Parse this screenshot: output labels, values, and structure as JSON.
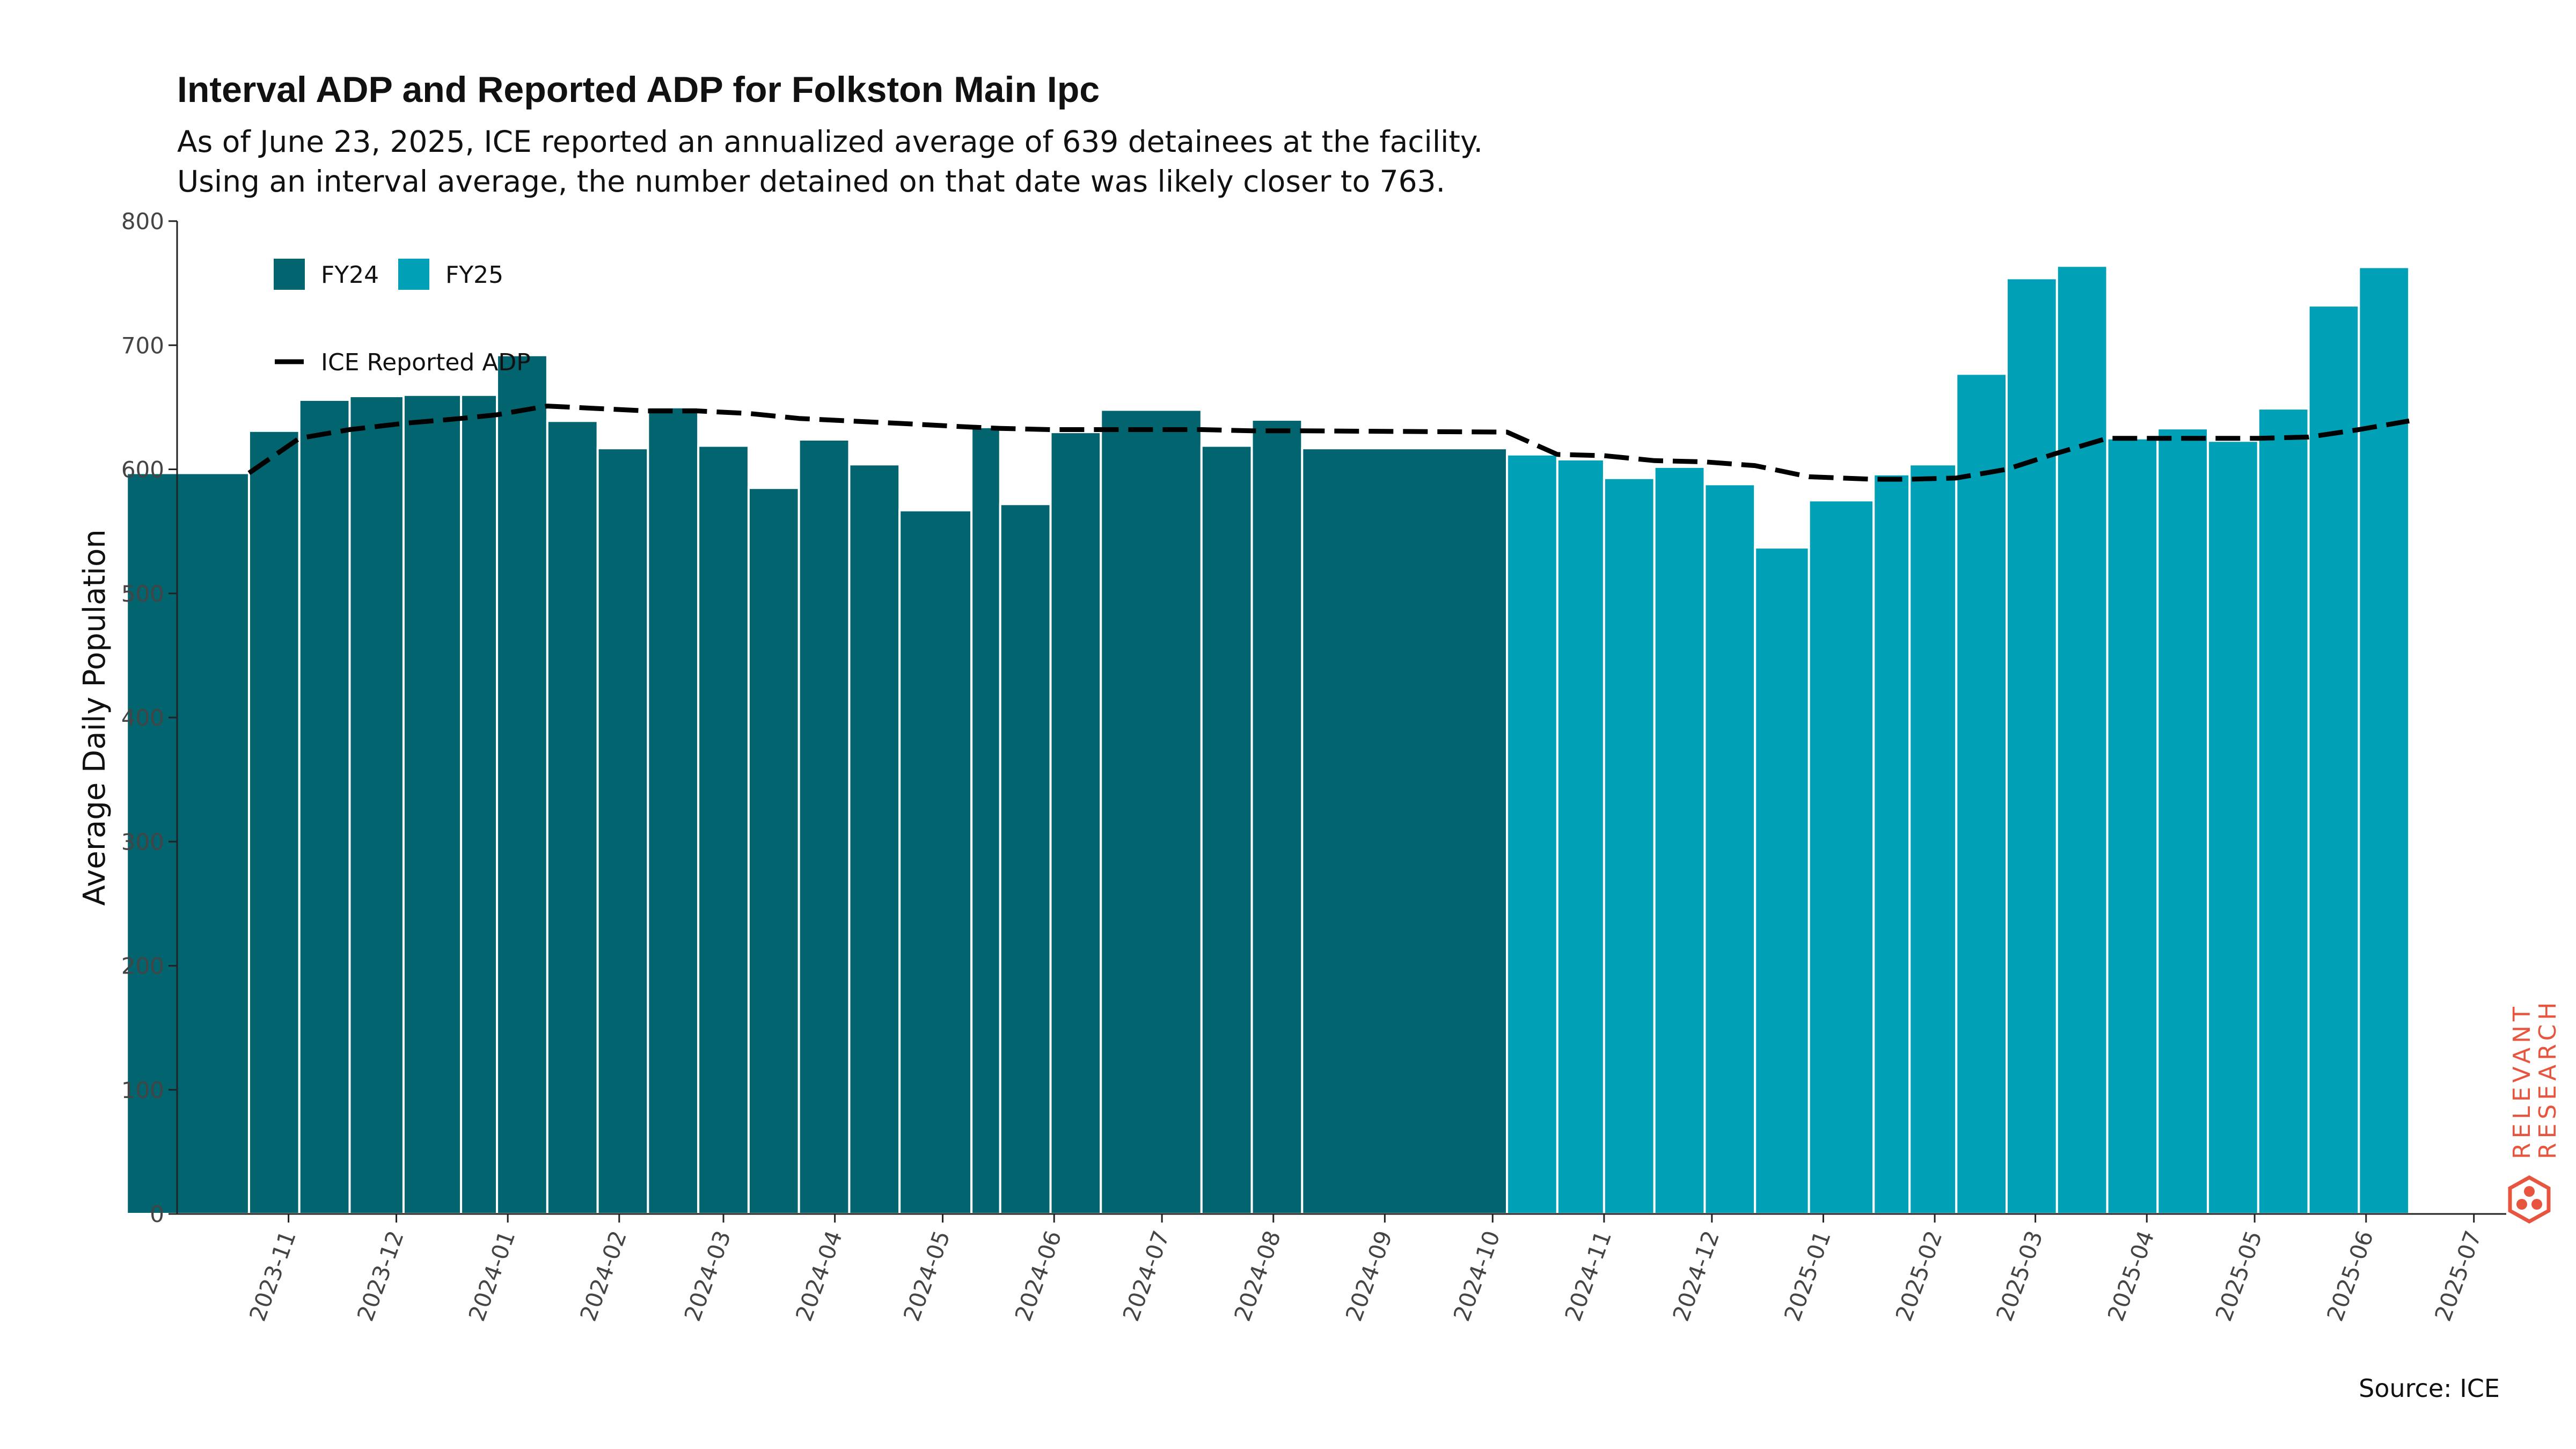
{
  "header": {
    "title": "Interval ADP and Reported ADP for Folkston Main Ipc",
    "subtitle_line1": "As of June 23, 2025, ICE reported an annualized average of 639 detainees at the facility.",
    "subtitle_line2": "Using an interval average, the number detained on that date was likely closer to 763."
  },
  "footer": {
    "source": "Source: ICE"
  },
  "brand": {
    "line1": "RELEVANT",
    "line2": "RESEARCH",
    "logo_icon": "hexagon-dots-icon",
    "color": "#e8553f"
  },
  "chart_data": {
    "type": "bar",
    "ylabel": "Average Daily Population",
    "xlabel": "",
    "ylim": [
      0,
      800
    ],
    "y_ticks": [
      0,
      100,
      200,
      300,
      400,
      500,
      600,
      700,
      800
    ],
    "x_ticks": [
      "2023-11",
      "2023-12",
      "2024-01",
      "2024-02",
      "2024-03",
      "2024-04",
      "2024-05",
      "2024-06",
      "2024-07",
      "2024-08",
      "2024-09",
      "2024-10",
      "2024-11",
      "2024-12",
      "2025-01",
      "2025-02",
      "2025-03",
      "2025-04",
      "2025-05",
      "2025-06",
      "2025-07"
    ],
    "legend": {
      "placement": "top-left",
      "entries": [
        {
          "label": "FY24",
          "color": "#02646f"
        },
        {
          "label": "FY25",
          "color": "#00a1b7"
        },
        {
          "label": "ICE Reported ADP",
          "style": "dashed-line",
          "color": "#000000"
        }
      ]
    },
    "bars": [
      {
        "start": "2023-10-01",
        "end": "2023-11-04",
        "value": 597,
        "fy": "FY24"
      },
      {
        "start": "2023-11-04",
        "end": "2023-11-18",
        "value": 631,
        "fy": "FY24"
      },
      {
        "start": "2023-11-18",
        "end": "2023-12-02",
        "value": 656,
        "fy": "FY24"
      },
      {
        "start": "2023-12-02",
        "end": "2023-12-17",
        "value": 659,
        "fy": "FY24"
      },
      {
        "start": "2023-12-17",
        "end": "2024-01-02",
        "value": 660,
        "fy": "FY24"
      },
      {
        "start": "2024-01-02",
        "end": "2024-01-12",
        "value": 660,
        "fy": "FY24"
      },
      {
        "start": "2024-01-12",
        "end": "2024-01-26",
        "value": 692,
        "fy": "FY24"
      },
      {
        "start": "2024-01-26",
        "end": "2024-02-09",
        "value": 639,
        "fy": "FY24"
      },
      {
        "start": "2024-02-09",
        "end": "2024-02-23",
        "value": 617,
        "fy": "FY24"
      },
      {
        "start": "2024-02-23",
        "end": "2024-03-08",
        "value": 650,
        "fy": "FY24"
      },
      {
        "start": "2024-03-08",
        "end": "2024-03-22",
        "value": 619,
        "fy": "FY24"
      },
      {
        "start": "2024-03-22",
        "end": "2024-04-05",
        "value": 585,
        "fy": "FY24"
      },
      {
        "start": "2024-04-05",
        "end": "2024-04-19",
        "value": 624,
        "fy": "FY24"
      },
      {
        "start": "2024-04-19",
        "end": "2024-05-03",
        "value": 604,
        "fy": "FY24"
      },
      {
        "start": "2024-05-03",
        "end": "2024-05-23",
        "value": 567,
        "fy": "FY24"
      },
      {
        "start": "2024-05-23",
        "end": "2024-05-31",
        "value": 634,
        "fy": "FY24"
      },
      {
        "start": "2024-05-31",
        "end": "2024-06-14",
        "value": 572,
        "fy": "FY24"
      },
      {
        "start": "2024-06-14",
        "end": "2024-06-28",
        "value": 630,
        "fy": "FY24"
      },
      {
        "start": "2024-06-28",
        "end": "2024-07-26",
        "value": 648,
        "fy": "FY24"
      },
      {
        "start": "2024-07-26",
        "end": "2024-08-09",
        "value": 619,
        "fy": "FY24"
      },
      {
        "start": "2024-08-09",
        "end": "2024-08-23",
        "value": 640,
        "fy": "FY24"
      },
      {
        "start": "2024-08-23",
        "end": "2024-10-19",
        "value": 617,
        "fy": "FY24"
      },
      {
        "start": "2024-10-19",
        "end": "2024-11-02",
        "value": 612,
        "fy": "FY25"
      },
      {
        "start": "2024-11-02",
        "end": "2024-11-15",
        "value": 608,
        "fy": "FY25"
      },
      {
        "start": "2024-11-15",
        "end": "2024-11-29",
        "value": 593,
        "fy": "FY25"
      },
      {
        "start": "2024-11-29",
        "end": "2024-12-13",
        "value": 602,
        "fy": "FY25"
      },
      {
        "start": "2024-12-13",
        "end": "2024-12-27",
        "value": 588,
        "fy": "FY25"
      },
      {
        "start": "2024-12-27",
        "end": "2025-01-11",
        "value": 537,
        "fy": "FY25"
      },
      {
        "start": "2025-01-11",
        "end": "2025-01-29",
        "value": 575,
        "fy": "FY25"
      },
      {
        "start": "2025-01-29",
        "end": "2025-02-08",
        "value": 596,
        "fy": "FY25"
      },
      {
        "start": "2025-02-08",
        "end": "2025-02-21",
        "value": 604,
        "fy": "FY25"
      },
      {
        "start": "2025-02-21",
        "end": "2025-03-07",
        "value": 677,
        "fy": "FY25"
      },
      {
        "start": "2025-03-07",
        "end": "2025-03-21",
        "value": 754,
        "fy": "FY25"
      },
      {
        "start": "2025-03-21",
        "end": "2025-04-04",
        "value": 764,
        "fy": "FY25"
      },
      {
        "start": "2025-04-04",
        "end": "2025-04-18",
        "value": 625,
        "fy": "FY25"
      },
      {
        "start": "2025-04-18",
        "end": "2025-05-02",
        "value": 633,
        "fy": "FY25"
      },
      {
        "start": "2025-05-02",
        "end": "2025-05-16",
        "value": 623,
        "fy": "FY25"
      },
      {
        "start": "2025-05-16",
        "end": "2025-05-30",
        "value": 649,
        "fy": "FY25"
      },
      {
        "start": "2025-05-30",
        "end": "2025-06-13",
        "value": 732,
        "fy": "FY25"
      },
      {
        "start": "2025-06-13",
        "end": "2025-06-27",
        "value": 763,
        "fy": "FY25"
      }
    ],
    "reported_adp": [
      {
        "date": "2023-11-04",
        "value": 597
      },
      {
        "date": "2023-11-18",
        "value": 625
      },
      {
        "date": "2023-12-02",
        "value": 632
      },
      {
        "date": "2023-12-17",
        "value": 637
      },
      {
        "date": "2024-01-02",
        "value": 641
      },
      {
        "date": "2024-01-12",
        "value": 644
      },
      {
        "date": "2024-01-26",
        "value": 651
      },
      {
        "date": "2024-02-09",
        "value": 649
      },
      {
        "date": "2024-02-23",
        "value": 647
      },
      {
        "date": "2024-03-08",
        "value": 647
      },
      {
        "date": "2024-03-22",
        "value": 645
      },
      {
        "date": "2024-04-05",
        "value": 641
      },
      {
        "date": "2024-04-19",
        "value": 639
      },
      {
        "date": "2024-05-03",
        "value": 637
      },
      {
        "date": "2024-05-23",
        "value": 634
      },
      {
        "date": "2024-05-31",
        "value": 633
      },
      {
        "date": "2024-06-14",
        "value": 632
      },
      {
        "date": "2024-06-28",
        "value": 632
      },
      {
        "date": "2024-07-26",
        "value": 632
      },
      {
        "date": "2024-08-09",
        "value": 631
      },
      {
        "date": "2024-08-23",
        "value": 631
      },
      {
        "date": "2024-10-19",
        "value": 630
      },
      {
        "date": "2024-11-02",
        "value": 612
      },
      {
        "date": "2024-11-15",
        "value": 611
      },
      {
        "date": "2024-11-29",
        "value": 607
      },
      {
        "date": "2024-12-13",
        "value": 606
      },
      {
        "date": "2024-12-27",
        "value": 603
      },
      {
        "date": "2025-01-11",
        "value": 594
      },
      {
        "date": "2025-01-29",
        "value": 592
      },
      {
        "date": "2025-02-08",
        "value": 592
      },
      {
        "date": "2025-02-21",
        "value": 593
      },
      {
        "date": "2025-03-07",
        "value": 600
      },
      {
        "date": "2025-03-21",
        "value": 613
      },
      {
        "date": "2025-04-04",
        "value": 625
      },
      {
        "date": "2025-04-18",
        "value": 625
      },
      {
        "date": "2025-05-02",
        "value": 625
      },
      {
        "date": "2025-05-16",
        "value": 625
      },
      {
        "date": "2025-05-30",
        "value": 626
      },
      {
        "date": "2025-06-13",
        "value": 632
      },
      {
        "date": "2025-06-27",
        "value": 639
      }
    ]
  }
}
